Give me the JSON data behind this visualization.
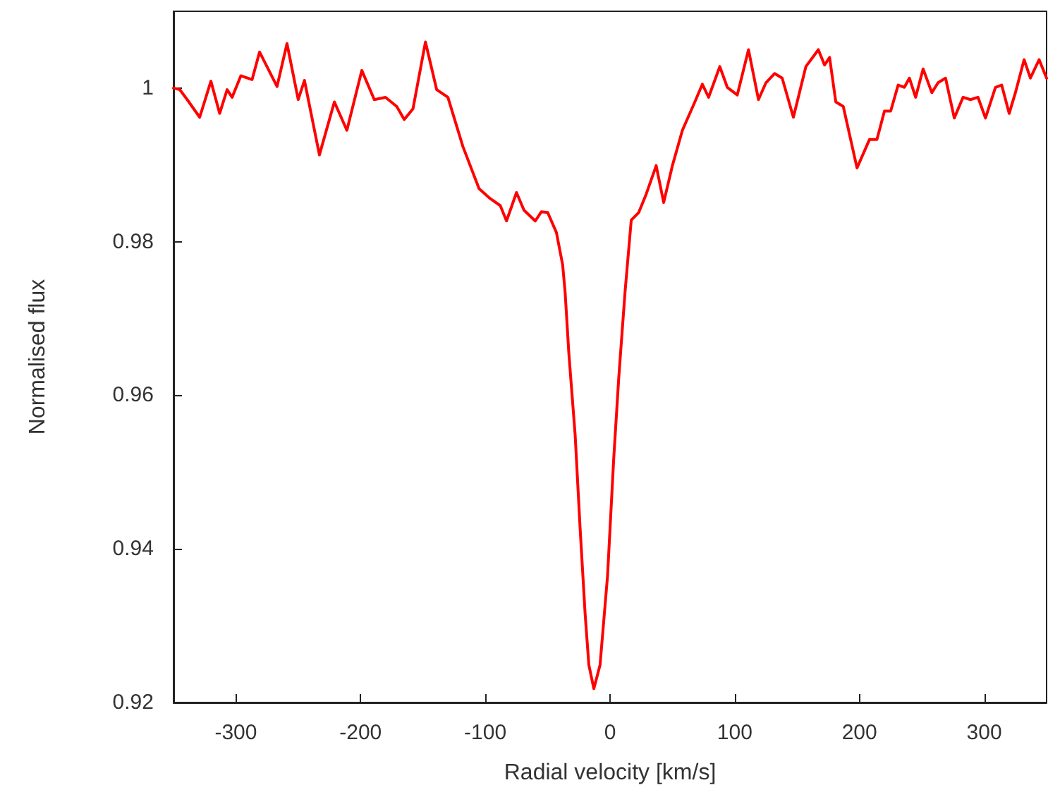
{
  "chart_data": {
    "type": "line",
    "xlabel": "Radial velocity [km/s]",
    "ylabel": "Normalised flux",
    "xlim": [
      -350,
      350
    ],
    "xticks": [
      -300,
      -200,
      -100,
      0,
      100,
      200,
      300
    ],
    "ylim": [
      0.92,
      1.01
    ],
    "yticks": [
      0.92,
      0.94,
      0.96,
      0.98,
      1
    ],
    "grid": false,
    "marker": "none",
    "line_style": "solid",
    "series": [
      {
        "color": "#ff0000",
        "x": [
          -350,
          -345,
          -339,
          -329,
          -320,
          -313,
          -307,
          -303,
          -296,
          -287,
          -281,
          -267,
          -259,
          -250,
          -245,
          -233,
          -221,
          -211,
          -199,
          -189,
          -180,
          -171,
          -165,
          -158,
          -148,
          -139,
          -130,
          -118,
          -105,
          -96,
          -88,
          -83,
          -75,
          -69,
          -60,
          -55,
          -50,
          -43,
          -38,
          -36,
          -33,
          -28,
          -24,
          -20,
          -17,
          -13,
          -8,
          -2,
          3,
          7,
          12,
          17,
          23,
          29,
          37,
          43,
          50,
          58,
          68,
          74,
          79,
          88,
          94,
          102,
          111,
          119,
          125,
          132,
          138,
          147,
          157,
          167,
          172,
          176,
          181,
          187,
          198,
          208,
          214,
          220,
          225,
          231,
          236,
          240,
          245,
          251,
          258,
          263,
          269,
          276,
          283,
          289,
          295,
          301,
          309,
          314,
          320,
          325,
          332,
          337,
          344,
          350
        ],
        "values": [
          1.0,
          0.9998,
          0.9985,
          0.9962,
          1.0009,
          0.9967,
          0.9998,
          0.9988,
          1.0016,
          1.0011,
          1.0047,
          1.0002,
          1.0058,
          0.9985,
          1.001,
          0.9913,
          0.9982,
          0.9945,
          1.0023,
          0.9985,
          0.9988,
          0.9976,
          0.9959,
          0.9973,
          1.006,
          0.9998,
          0.9988,
          0.9924,
          0.9869,
          0.9856,
          0.9847,
          0.9827,
          0.9864,
          0.9841,
          0.9827,
          0.9839,
          0.9838,
          0.9812,
          0.977,
          0.9734,
          0.9654,
          0.9549,
          0.9427,
          0.9316,
          0.9249,
          0.9218,
          0.9249,
          0.9365,
          0.9519,
          0.9623,
          0.9734,
          0.9828,
          0.9838,
          0.9862,
          0.9899,
          0.9851,
          0.9899,
          0.9945,
          0.9982,
          1.0005,
          0.9988,
          1.0028,
          1.0001,
          0.9991,
          1.005,
          0.9985,
          1.0007,
          1.0019,
          1.0013,
          0.9962,
          1.0028,
          1.005,
          1.003,
          1.004,
          0.9982,
          0.9976,
          0.9896,
          0.9933,
          0.9933,
          0.997,
          0.997,
          1.0004,
          1.0001,
          1.0013,
          0.9988,
          1.0025,
          0.9994,
          1.0007,
          1.0013,
          0.9961,
          0.9988,
          0.9985,
          0.9988,
          0.9961,
          1.0001,
          1.0004,
          0.9967,
          0.9994,
          1.0037,
          1.0013,
          1.0037,
          1.0013
        ]
      }
    ]
  }
}
